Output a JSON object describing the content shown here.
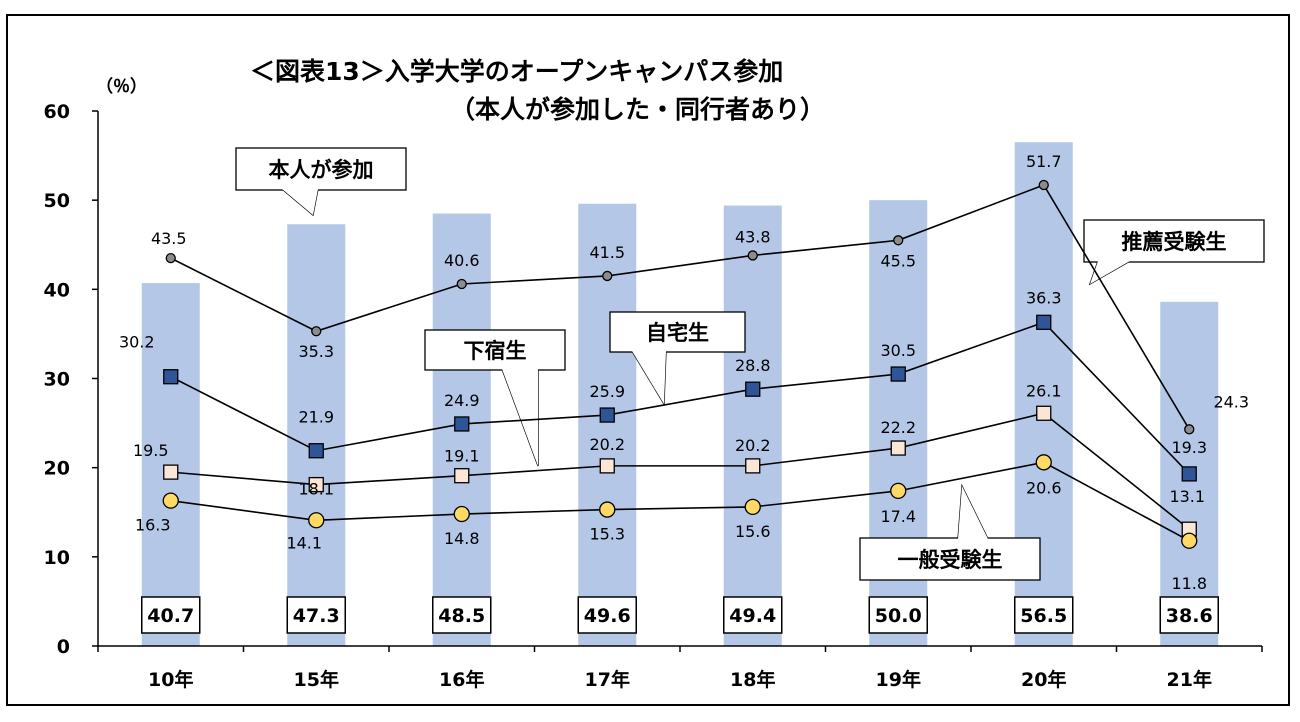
{
  "title_line1": "＜図表13＞入学大学のオープンキャンパス参加",
  "title_line2": "（本人が参加した・同行者あり）",
  "unit_label": "（％）",
  "chart_data": {
    "type": "bar",
    "categories": [
      "10年",
      "15年",
      "16年",
      "17年",
      "18年",
      "19年",
      "20年",
      "21年"
    ],
    "ylim": [
      0,
      60
    ],
    "yticks": [
      0,
      10,
      20,
      30,
      40,
      50,
      60
    ],
    "grid": false,
    "bar_series": {
      "name": "本人が参加",
      "values": [
        40.7,
        47.3,
        48.5,
        49.6,
        49.4,
        50.0,
        56.5,
        38.6
      ],
      "labels": [
        "40.7",
        "47.3",
        "48.5",
        "49.6",
        "49.4",
        "50.0",
        "56.5",
        "38.6"
      ],
      "color": "#b4c7e7"
    },
    "line_series": [
      {
        "name": "推薦受験生",
        "values": [
          43.5,
          35.3,
          40.6,
          41.5,
          43.8,
          45.5,
          51.7,
          24.3
        ],
        "labels": [
          "43.5",
          "35.3",
          "40.6",
          "41.5",
          "43.8",
          "45.5",
          "51.7",
          "24.3"
        ],
        "marker": "circle-small",
        "color": "#8c8c8c"
      },
      {
        "name": "自宅生",
        "values": [
          30.2,
          21.9,
          24.9,
          25.9,
          28.8,
          30.5,
          36.3,
          19.3
        ],
        "labels": [
          "30.2",
          "21.9",
          "24.9",
          "25.9",
          "28.8",
          "30.5",
          "36.3",
          "19.3"
        ],
        "marker": "square",
        "color": "#2f5597"
      },
      {
        "name": "下宿生",
        "values": [
          19.5,
          18.1,
          19.1,
          20.2,
          20.2,
          22.2,
          26.1,
          13.1
        ],
        "labels": [
          "19.5",
          "18.1",
          "19.1",
          "20.2",
          "20.2",
          "22.2",
          "26.1",
          "13.1"
        ],
        "marker": "square",
        "color": "#fbe5d6"
      },
      {
        "name": "一般受験生",
        "values": [
          16.3,
          14.1,
          14.8,
          15.3,
          15.6,
          17.4,
          20.6,
          11.8
        ],
        "labels": [
          "16.3",
          "14.1",
          "14.8",
          "15.3",
          "15.6",
          "17.4",
          "20.6",
          "11.8"
        ],
        "marker": "circle",
        "color": "#ffd966"
      }
    ],
    "callouts": [
      "本人が参加",
      "推薦受験生",
      "自宅生",
      "下宿生",
      "一般受験生"
    ]
  }
}
